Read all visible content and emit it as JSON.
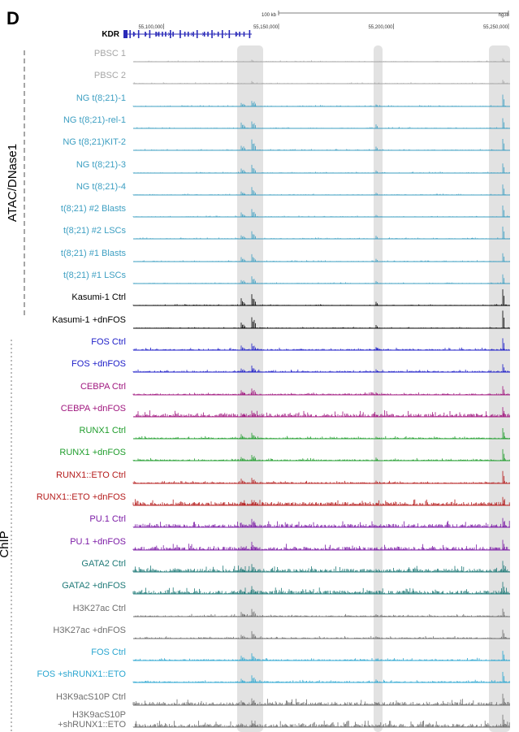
{
  "panel_label": "D",
  "genome": {
    "gene_name": "KDR",
    "assembly": "hg38",
    "scale_label": "100 kb",
    "position_ticks": [
      {
        "label": "55,100,000",
        "pos": 55100000
      },
      {
        "label": "55,150,000",
        "pos": 55150000
      },
      {
        "label": "55,200,000",
        "pos": 55200000
      },
      {
        "label": "55,250,000",
        "pos": 55250000
      }
    ]
  },
  "groups": [
    {
      "label": "ATAC/DNase1"
    },
    {
      "label": "ChIP"
    }
  ],
  "tracks": [
    {
      "label": "PBSC 1",
      "color": "#a6a6a6"
    },
    {
      "label": "PBSC 2",
      "color": "#a6a6a6"
    },
    {
      "label": "NG t(8;21)-1",
      "color": "#3d9fc2"
    },
    {
      "label": "NG t(8;21)-rel-1",
      "color": "#3d9fc2"
    },
    {
      "label": "NG t(8;21)KIT-2",
      "color": "#3d9fc2"
    },
    {
      "label": "NG t(8;21)-3",
      "color": "#3d9fc2"
    },
    {
      "label": "NG t(8;21)-4",
      "color": "#3d9fc2"
    },
    {
      "label": "t(8;21) #2 Blasts",
      "color": "#3d9fc2"
    },
    {
      "label": "t(8;21) #2 LSCs",
      "color": "#3d9fc2"
    },
    {
      "label": "t(8;21) #1 Blasts",
      "color": "#3d9fc2"
    },
    {
      "label": "t(8;21) #1 LSCs",
      "color": "#3d9fc2"
    },
    {
      "label": "Kasumi-1 Ctrl",
      "color": "#000000"
    },
    {
      "label": "Kasumi-1 +dnFOS",
      "color": "#000000"
    },
    {
      "label": "FOS Ctrl",
      "color": "#1c1cc8"
    },
    {
      "label": "FOS +dnFOS",
      "color": "#1c1cc8"
    },
    {
      "label": "CEBPA Ctrl",
      "color": "#a0177f"
    },
    {
      "label": "CEBPA +dnFOS",
      "color": "#a0177f"
    },
    {
      "label": "RUNX1 Ctrl",
      "color": "#1f9d2c"
    },
    {
      "label": "RUNX1 +dnFOS",
      "color": "#1f9d2c"
    },
    {
      "label": "RUNX1::ETO Ctrl",
      "color": "#b51d1d"
    },
    {
      "label": "RUNX1::ETO +dnFOS",
      "color": "#b51d1d"
    },
    {
      "label": "PU.1 Ctrl",
      "color": "#7c1ca6"
    },
    {
      "label": "PU.1 +dnFOS",
      "color": "#7c1ca6"
    },
    {
      "label": "GATA2 Ctrl",
      "color": "#1f7a78"
    },
    {
      "label": "GATA2 +dnFOS",
      "color": "#1f7a78"
    },
    {
      "label": "H3K27ac Ctrl",
      "color": "#6e6e6e"
    },
    {
      "label": "H3K27ac +dnFOS",
      "color": "#6e6e6e"
    },
    {
      "label": "FOS Ctrl",
      "color": "#2aa6d0"
    },
    {
      "label": "FOS +shRUNX1::ETO",
      "color": "#2aa6d0"
    },
    {
      "label": "H3K9acS10P Ctrl",
      "color": "#6e6e6e"
    },
    {
      "label": "H3K9acS10P",
      "label2": "+shRUNX1::ETO",
      "color": "#6e6e6e"
    }
  ]
}
